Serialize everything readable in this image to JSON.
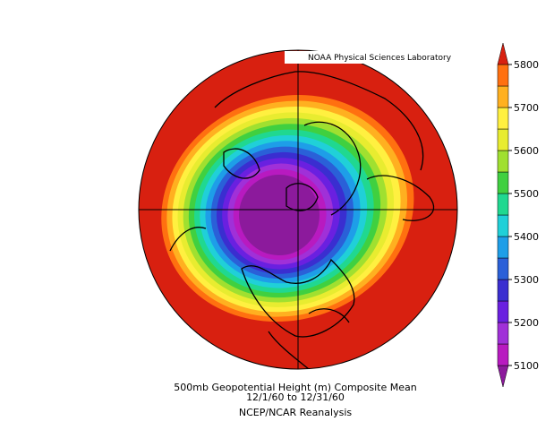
{
  "map": {
    "label": "NOAA Physical Sciences Laboratory",
    "title": [
      "500mb Geopotential Height (m) Composite Mean",
      "12/1/60  to 12/31/60"
    ],
    "source": "NCEP/NCAR Reanalysis",
    "colorbar": {
      "lim": [
        5050,
        5850
      ],
      "ticks": [
        5100,
        5200,
        5300,
        5400,
        5500,
        5600,
        5700,
        5800
      ],
      "colors": [
        "#8c1a9c",
        "#b81ac0",
        "#a030d8",
        "#6a20e0",
        "#3a2ed0",
        "#2a60d8",
        "#1e9ee8",
        "#20d0d8",
        "#20d890",
        "#40d040",
        "#a0e030",
        "#e8ec30",
        "#fff040",
        "#ffb020",
        "#ff7010",
        "#d82010"
      ]
    }
  }
}
